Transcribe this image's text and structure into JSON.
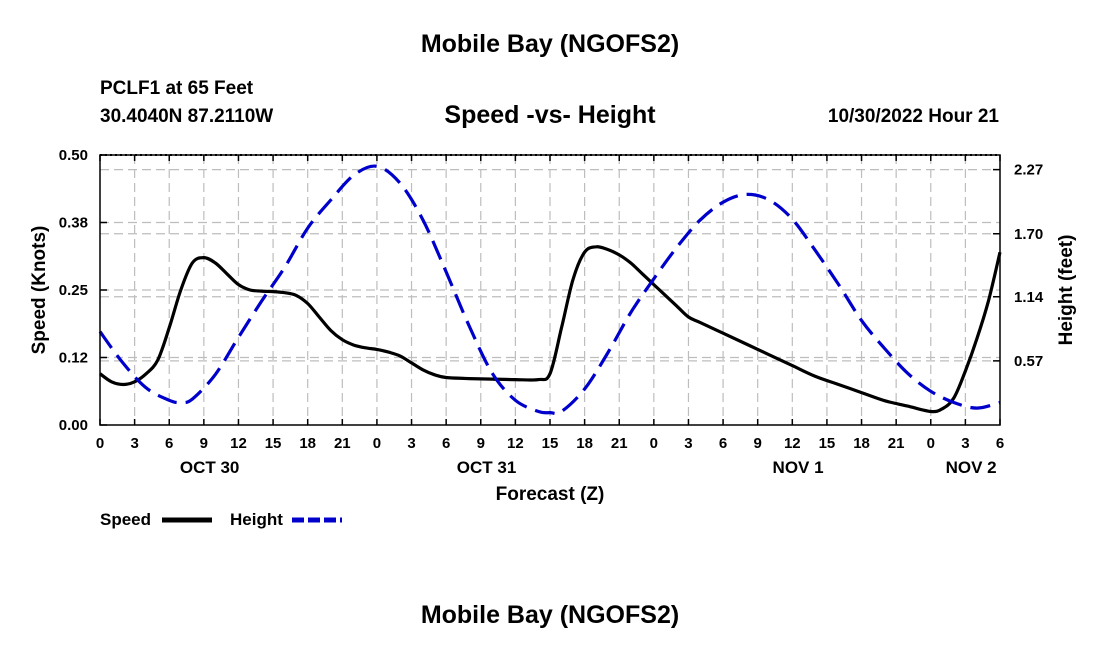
{
  "header": {
    "title": "Mobile Bay (NGOFS2)",
    "station": "PCLF1 at 65 Feet",
    "coords": "30.4040N  87.2110W",
    "subtitle": "Speed -vs- Height",
    "date": "10/30/2022 Hour 21"
  },
  "footer": {
    "title": "Mobile Bay (NGOFS2)"
  },
  "legend": {
    "speed_label": "Speed",
    "height_label": "Height",
    "speed_color": "#000000",
    "height_color": "#0000cc"
  },
  "chart_data": {
    "type": "line",
    "title": "Speed -vs- Height",
    "xlabel": "Forecast (Z)",
    "ylabel": "Speed (Knots)",
    "y2label": "Height (feet)",
    "xlim": [
      0,
      78
    ],
    "ylim": [
      0,
      0.5
    ],
    "y2lim": [
      0,
      2.4
    ],
    "yticks": [
      0.0,
      0.125,
      0.25,
      0.375,
      0.5
    ],
    "ytick_labels": [
      "0.00",
      "0.12",
      "0.25",
      "0.38",
      "0.50"
    ],
    "y2ticks": [
      0.57,
      1.14,
      1.7,
      2.27
    ],
    "y2tick_labels": [
      "0.57",
      "1.14",
      "1.70",
      "2.27"
    ],
    "xticks": [
      0,
      3,
      6,
      9,
      12,
      15,
      18,
      21,
      24,
      27,
      30,
      33,
      36,
      39,
      42,
      45,
      48,
      51,
      54,
      57,
      60,
      63,
      66,
      69,
      72,
      75,
      78
    ],
    "xtick_labels": [
      "0",
      "3",
      "6",
      "9",
      "12",
      "15",
      "18",
      "21",
      "0",
      "3",
      "6",
      "9",
      "12",
      "15",
      "18",
      "21",
      "0",
      "3",
      "6",
      "9",
      "12",
      "15",
      "18",
      "21",
      "0",
      "3",
      "6"
    ],
    "date_labels": [
      {
        "x": 9.5,
        "label": "OCT 30"
      },
      {
        "x": 33.5,
        "label": "OCT 31"
      },
      {
        "x": 60.5,
        "label": "NOV 1"
      },
      {
        "x": 75.5,
        "label": "NOV 2"
      }
    ],
    "grid": true,
    "series": [
      {
        "name": "Speed",
        "axis": "left",
        "style": "solid",
        "color": "#000000",
        "x": [
          0,
          1,
          2,
          3,
          4,
          5,
          6,
          7,
          8,
          9,
          10,
          11,
          12,
          13,
          14,
          15,
          16,
          17,
          18,
          19,
          20,
          21,
          22,
          23,
          24,
          25,
          26,
          27,
          28,
          29,
          30,
          32,
          34,
          36,
          38,
          39,
          40,
          41,
          42,
          43,
          44,
          45,
          46,
          47,
          48,
          49,
          50,
          51,
          52,
          54,
          56,
          58,
          60,
          62,
          64,
          66,
          68,
          70,
          72,
          73,
          74,
          75,
          76,
          77,
          78
        ],
        "values": [
          0.095,
          0.08,
          0.075,
          0.08,
          0.095,
          0.12,
          0.18,
          0.25,
          0.3,
          0.31,
          0.3,
          0.28,
          0.26,
          0.25,
          0.248,
          0.247,
          0.245,
          0.24,
          0.225,
          0.2,
          0.175,
          0.158,
          0.148,
          0.143,
          0.14,
          0.135,
          0.128,
          0.115,
          0.102,
          0.093,
          0.088,
          0.086,
          0.085,
          0.084,
          0.084,
          0.095,
          0.18,
          0.27,
          0.32,
          0.33,
          0.325,
          0.315,
          0.3,
          0.28,
          0.26,
          0.24,
          0.22,
          0.2,
          0.19,
          0.17,
          0.15,
          0.13,
          0.11,
          0.09,
          0.075,
          0.06,
          0.045,
          0.035,
          0.025,
          0.03,
          0.05,
          0.1,
          0.16,
          0.23,
          0.32
        ]
      },
      {
        "name": "Height",
        "axis": "right",
        "style": "dashed",
        "color": "#0000cc",
        "x": [
          0,
          2,
          4,
          6,
          7,
          8,
          10,
          12,
          14,
          16,
          18,
          20,
          22,
          24,
          26,
          28,
          30,
          32,
          34,
          36,
          38,
          39,
          40,
          42,
          44,
          46,
          48,
          50,
          52,
          54,
          56,
          58,
          60,
          62,
          64,
          66,
          68,
          70,
          72,
          74,
          76,
          78
        ],
        "values": [
          0.83,
          0.55,
          0.33,
          0.22,
          0.2,
          0.23,
          0.45,
          0.78,
          1.1,
          1.4,
          1.75,
          2.0,
          2.22,
          2.3,
          2.15,
          1.82,
          1.36,
          0.88,
          0.46,
          0.22,
          0.12,
          0.11,
          0.12,
          0.32,
          0.64,
          1.0,
          1.3,
          1.58,
          1.82,
          1.98,
          2.05,
          2.0,
          1.83,
          1.55,
          1.25,
          0.93,
          0.68,
          0.46,
          0.3,
          0.2,
          0.15,
          0.2
        ]
      }
    ]
  }
}
